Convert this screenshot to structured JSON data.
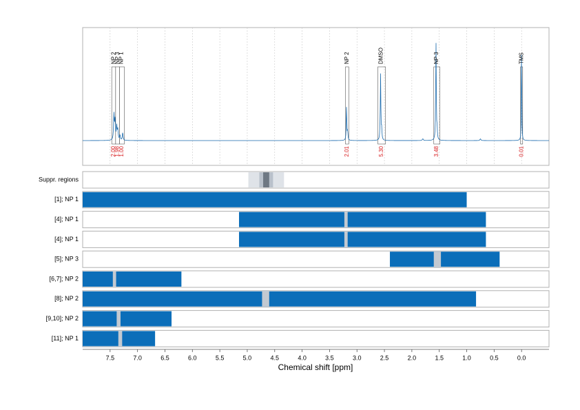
{
  "chart_data": {
    "type": "line",
    "title": "",
    "xlabel": "Chemical shift [ppm]",
    "xlim": [
      8.0,
      -0.5
    ],
    "x_reversed": true,
    "x_ticks": [
      7.5,
      7.0,
      6.5,
      6.0,
      5.5,
      5.0,
      4.5,
      4.0,
      3.5,
      3.0,
      2.5,
      2.0,
      1.5,
      1.0,
      0.5,
      0.0
    ],
    "x_tick_labels": [
      "7.5",
      "7.0",
      "6.5",
      "6.0",
      "5.5",
      "5.0",
      "4.5",
      "4.0",
      "3.5",
      "3.0",
      "2.5",
      "2.0",
      "1.5",
      "1.0",
      "0.5",
      "0.0"
    ],
    "colors": {
      "spectrum": "#1a6aad",
      "bar": "#0b6eb9",
      "gap": "#c2c9d1",
      "integral": "#d7191c",
      "box": "#555555",
      "grid": "#c8c8c8",
      "frame": "#b0b0b0",
      "suppr_light": "#dfe3e8",
      "suppr_mid": "#b9c1cb",
      "suppr_dark": "#6e7883"
    },
    "spectrum": {
      "baseline": 0,
      "peaks": [
        {
          "ppm": 7.43,
          "height": 0.3,
          "width": 0.008
        },
        {
          "ppm": 7.41,
          "height": 0.22,
          "width": 0.008
        },
        {
          "ppm": 7.38,
          "height": 0.16,
          "width": 0.008
        },
        {
          "ppm": 7.36,
          "height": 0.12,
          "width": 0.008
        },
        {
          "ppm": 7.32,
          "height": 0.06,
          "width": 0.008
        },
        {
          "ppm": 7.27,
          "height": 0.09,
          "width": 0.008
        },
        {
          "ppm": 3.19,
          "height": 0.4,
          "width": 0.006
        },
        {
          "ppm": 3.17,
          "height": 0.1,
          "width": 0.006
        },
        {
          "ppm": 2.57,
          "height": 0.77,
          "width": 0.006
        },
        {
          "ppm": 2.55,
          "height": 0.12,
          "width": 0.006
        },
        {
          "ppm": 1.56,
          "height": 1.15,
          "width": 0.006
        },
        {
          "ppm": 1.54,
          "height": 0.1,
          "width": 0.006
        },
        {
          "ppm": 0.0,
          "height": 1.3,
          "width": 0.004
        },
        {
          "ppm": 1.8,
          "height": 0.02,
          "width": 0.01
        },
        {
          "ppm": 0.75,
          "height": 0.02,
          "width": 0.01
        }
      ]
    },
    "peak_labels": [
      {
        "label": "NP 2",
        "ppm": 7.43
      },
      {
        "label": "NP 3",
        "ppm": 7.36
      },
      {
        "label": "NP 1",
        "ppm": 7.29
      },
      {
        "label": "NP 2",
        "ppm": 3.18
      },
      {
        "label": "DMSO",
        "ppm": 2.56
      },
      {
        "label": "NP 3",
        "ppm": 1.55
      },
      {
        "label": "TMS",
        "ppm": 0.0
      }
    ],
    "integration_boxes": [
      {
        "from": 7.47,
        "to": 7.4,
        "integral": "2.00"
      },
      {
        "from": 7.4,
        "to": 7.33,
        "integral": "1.98"
      },
      {
        "from": 7.33,
        "to": 7.24,
        "integral": "1.00"
      },
      {
        "from": 3.21,
        "to": 3.15,
        "integral": "2.01"
      },
      {
        "from": 2.62,
        "to": 2.48,
        "integral": "5.30"
      },
      {
        "from": 1.6,
        "to": 1.49,
        "integral": "3.48"
      },
      {
        "from": 0.02,
        "to": -0.02,
        "integral": "0.01"
      }
    ],
    "suppression_regions": [
      {
        "from": 4.98,
        "to": 4.33,
        "level": "light"
      },
      {
        "from": 4.78,
        "to": 4.53,
        "level": "mid"
      },
      {
        "from": 4.71,
        "to": 4.6,
        "level": "dark"
      }
    ],
    "rows": [
      {
        "label": "Suppr. regions",
        "kind": "suppression",
        "segments": [],
        "gaps": []
      },
      {
        "label": "[1]; NP 1",
        "kind": "bars",
        "segments": [
          [
            8.0,
            1.0
          ]
        ],
        "gaps": []
      },
      {
        "label": "[4]; NP 1",
        "kind": "bars",
        "segments": [
          [
            5.15,
            0.65
          ]
        ],
        "gaps": [
          [
            3.23,
            3.17
          ]
        ]
      },
      {
        "label": "[4]; NP 1",
        "kind": "bars",
        "segments": [
          [
            5.15,
            0.65
          ]
        ],
        "gaps": [
          [
            3.23,
            3.17
          ]
        ]
      },
      {
        "label": "[5]; NP 3",
        "kind": "bars",
        "segments": [
          [
            2.4,
            0.4
          ]
        ],
        "gaps": [
          [
            1.6,
            1.47
          ]
        ]
      },
      {
        "label": "[6,7]; NP 2",
        "kind": "bars",
        "segments": [
          [
            8.0,
            6.2
          ]
        ],
        "gaps": [
          [
            7.45,
            7.39
          ]
        ]
      },
      {
        "label": "[8]; NP 2",
        "kind": "bars",
        "segments": [
          [
            8.0,
            0.83
          ]
        ],
        "gaps": [
          [
            4.73,
            4.6
          ]
        ]
      },
      {
        "label": "[9,10]; NP 2",
        "kind": "bars",
        "segments": [
          [
            8.0,
            6.38
          ]
        ],
        "gaps": [
          [
            7.38,
            7.31
          ]
        ]
      },
      {
        "label": "[11]; NP 1",
        "kind": "bars",
        "segments": [
          [
            8.0,
            6.68
          ]
        ],
        "gaps": [
          [
            7.35,
            7.28
          ]
        ]
      }
    ]
  }
}
